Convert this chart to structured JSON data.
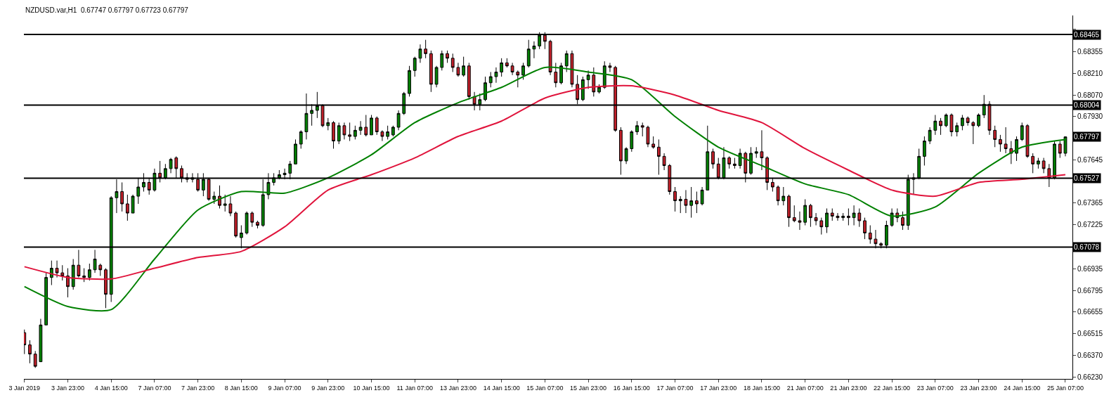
{
  "chart_data": {
    "type": "candlestick",
    "title": "NZDUSD.var,H1  0.67747 0.67797 0.67723 0.67797",
    "categories": [
      "3 Jan 2019",
      null,
      null,
      null,
      null,
      null,
      null,
      null,
      "3 Jan 23:00",
      null,
      null,
      null,
      null,
      null,
      null,
      null,
      "4 Jan 15:00",
      null,
      null,
      null,
      null,
      null,
      null,
      null,
      "7 Jan 07:00",
      null,
      null,
      null,
      null,
      null,
      null,
      null,
      "7 Jan 23:00",
      null,
      null,
      null,
      null,
      null,
      null,
      null,
      "8 Jan 15:00",
      null,
      null,
      null,
      null,
      null,
      null,
      null,
      "9 Jan 07:00",
      null,
      null,
      null,
      null,
      null,
      null,
      null,
      "9 Jan 23:00",
      null,
      null,
      null,
      null,
      null,
      null,
      null,
      "10 Jan 15:00",
      null,
      null,
      null,
      null,
      null,
      null,
      null,
      "11 Jan 07:00",
      null,
      null,
      null,
      null,
      null,
      null,
      null,
      "13 Jan 23:00",
      null,
      null,
      null,
      null,
      null,
      null,
      null,
      "14 Jan 15:00",
      null,
      null,
      null,
      null,
      null,
      null,
      null,
      "15 Jan 07:00",
      null,
      null,
      null,
      null,
      null,
      null,
      null,
      "15 Jan 23:00",
      null,
      null,
      null,
      null,
      null,
      null,
      null,
      "16 Jan 15:00",
      null,
      null,
      null,
      null,
      null,
      null,
      null,
      "17 Jan 07:00",
      null,
      null,
      null,
      null,
      null,
      null,
      null,
      "17 Jan 23:00",
      null,
      null,
      null,
      null,
      null,
      null,
      null,
      "18 Jan 15:00",
      null,
      null,
      null,
      null,
      null,
      null,
      null,
      "21 Jan 07:00",
      null,
      null,
      null,
      null,
      null,
      null,
      null,
      "21 Jan 23:00",
      null,
      null,
      null,
      null,
      null,
      null,
      null,
      "22 Jan 15:00",
      null,
      null,
      null,
      null,
      null,
      null,
      null,
      "23 Jan 07:00",
      null,
      null,
      null,
      null,
      null,
      null,
      null,
      "23 Jan 23:00",
      null,
      null,
      null,
      null,
      null,
      null,
      null,
      "24 Jan 15:00",
      null,
      null,
      null,
      null,
      null,
      null,
      null,
      "25 Jan 07:00"
    ],
    "ylim": [
      0.66218,
      0.68589
    ],
    "yticks": [
      {
        "value": 0.685,
        "label": null
      },
      0.68355,
      {
        "value": 0.6821,
        "label": "0.68210"
      },
      {
        "value": 0.6807,
        "label": "0.68070"
      },
      {
        "value": 0.6793,
        "label": "0.67930"
      },
      0.67645,
      {
        "value": 0.67505,
        "label": null
      },
      0.67365,
      0.67225,
      0.66935,
      0.66795,
      0.66655,
      0.66515,
      {
        "value": 0.6637,
        "label": "0.66370"
      },
      {
        "value": 0.6623,
        "label": "0.66230"
      }
    ],
    "ref_lines": [
      {
        "axis": "y",
        "value": 0.68465,
        "label": "0.68465",
        "color": "#000000"
      },
      {
        "axis": "y",
        "value": 0.68004,
        "label": "0.68004",
        "color": "#000000"
      },
      {
        "axis": "y",
        "value": 0.67527,
        "label": "0.67527",
        "color": "#000000"
      },
      {
        "axis": "y",
        "value": 0.67078,
        "label": "0.67078",
        "color": "#000000"
      }
    ],
    "annotations": [
      {
        "text": "0.67797",
        "y": 0.67797
      }
    ],
    "series": [
      {
        "type": "line",
        "color": "#008000",
        "x": [
          "3 Jan 2019",
          "3 Jan 23:00",
          "4 Jan 15:00",
          "7 Jan 07:00",
          "7 Jan 23:00",
          "8 Jan 15:00",
          "9 Jan 07:00",
          "9 Jan 23:00",
          "10 Jan 15:00",
          "11 Jan 07:00",
          "13 Jan 23:00",
          "14 Jan 15:00",
          "15 Jan 07:00",
          "15 Jan 23:00",
          "16 Jan 15:00",
          "17 Jan 07:00",
          "17 Jan 23:00",
          "18 Jan 15:00",
          "21 Jan 07:00",
          "21 Jan 23:00",
          "22 Jan 15:00",
          "23 Jan 07:00",
          "23 Jan 23:00",
          "24 Jan 15:00",
          "25 Jan 07:00"
        ],
        "values": [
          0.6682,
          0.6669,
          0.6667,
          0.67,
          0.6732,
          0.6744,
          0.6743,
          0.6753,
          0.6768,
          0.6789,
          0.6802,
          0.6812,
          0.6825,
          0.6822,
          0.6817,
          0.6793,
          0.6773,
          0.6761,
          0.6749,
          0.6742,
          0.6728,
          0.6734,
          0.6756,
          0.6773,
          0.6778
        ]
      },
      {
        "type": "line",
        "color": "#e0143c",
        "x": [
          "3 Jan 2019",
          "3 Jan 23:00",
          "4 Jan 15:00",
          "7 Jan 07:00",
          "7 Jan 23:00",
          "8 Jan 15:00",
          "9 Jan 07:00",
          "9 Jan 23:00",
          "10 Jan 15:00",
          "11 Jan 07:00",
          "13 Jan 23:00",
          "14 Jan 15:00",
          "15 Jan 07:00",
          "15 Jan 23:00",
          "16 Jan 15:00",
          "17 Jan 07:00",
          "17 Jan 23:00",
          "18 Jan 15:00",
          "21 Jan 07:00",
          "21 Jan 23:00",
          "22 Jan 15:00",
          "23 Jan 07:00",
          "23 Jan 23:00",
          "24 Jan 15:00",
          "25 Jan 07:00"
        ],
        "values": [
          0.6695,
          0.6688,
          0.6687,
          0.6694,
          0.6701,
          0.6705,
          0.6721,
          0.6745,
          0.6755,
          0.6766,
          0.678,
          0.679,
          0.6805,
          0.6812,
          0.6813,
          0.6807,
          0.6797,
          0.6789,
          0.6772,
          0.6758,
          0.6745,
          0.6741,
          0.675,
          0.6752,
          0.6755
        ]
      },
      {
        "ohlc": [
          [
            0.6652,
            0.6654,
            0.6638,
            0.6644
          ],
          [
            0.6644,
            0.6647,
            0.6632,
            0.6638
          ],
          [
            0.6638,
            0.664,
            0.6629,
            0.663
          ],
          [
            0.6633,
            0.6661,
            0.6633,
            0.6657
          ],
          [
            0.6657,
            0.6691,
            0.6657,
            0.6688
          ],
          [
            0.6688,
            0.6699,
            0.6683,
            0.6694
          ],
          [
            0.6694,
            0.6699,
            0.6688,
            0.6691
          ],
          [
            0.6691,
            0.6696,
            0.6686,
            0.6689
          ],
          [
            0.6689,
            0.6694,
            0.6675,
            0.6682
          ],
          [
            0.6682,
            0.67,
            0.668,
            0.6696
          ],
          [
            0.6696,
            0.6706,
            0.6688,
            0.6689
          ],
          [
            0.6689,
            0.6694,
            0.6685,
            0.6688
          ],
          [
            0.6688,
            0.6697,
            0.6686,
            0.6693
          ],
          [
            0.6693,
            0.6706,
            0.6691,
            0.67
          ],
          [
            0.6696,
            0.6697,
            0.6689,
            0.6693
          ],
          [
            0.6693,
            0.6694,
            0.6668,
            0.6677
          ],
          [
            0.6677,
            0.6741,
            0.6672,
            0.674
          ],
          [
            0.674,
            0.6752,
            0.673,
            0.6744
          ],
          [
            0.6744,
            0.675,
            0.6731,
            0.6736
          ],
          [
            0.6736,
            0.6742,
            0.6725,
            0.673
          ],
          [
            0.673,
            0.6742,
            0.673,
            0.6741
          ],
          [
            0.6741,
            0.6753,
            0.6736,
            0.6747
          ],
          [
            0.6747,
            0.6756,
            0.6744,
            0.675
          ],
          [
            0.675,
            0.6753,
            0.6742,
            0.6745
          ],
          [
            0.6745,
            0.6759,
            0.6744,
            0.6756
          ],
          [
            0.6756,
            0.6764,
            0.675,
            0.6753
          ],
          [
            0.6753,
            0.6762,
            0.6752,
            0.6759
          ],
          [
            0.6759,
            0.6766,
            0.6756,
            0.6765
          ],
          [
            0.6766,
            0.6767,
            0.6753,
            0.6759
          ],
          [
            0.6759,
            0.6761,
            0.675,
            0.6753
          ],
          [
            0.6753,
            0.6756,
            0.675,
            0.6752
          ],
          [
            0.6752,
            0.6756,
            0.675,
            0.6753
          ],
          [
            0.6752,
            0.6756,
            0.6744,
            0.6745
          ],
          [
            0.6745,
            0.6756,
            0.6741,
            0.6752
          ],
          [
            0.6752,
            0.6753,
            0.6738,
            0.6739
          ],
          [
            0.6739,
            0.6744,
            0.6736,
            0.6741
          ],
          [
            0.6741,
            0.6748,
            0.6733,
            0.6735
          ],
          [
            0.6735,
            0.6742,
            0.6731,
            0.6736
          ],
          [
            0.6736,
            0.6741,
            0.6728,
            0.673
          ],
          [
            0.673,
            0.6731,
            0.6714,
            0.6715
          ],
          [
            0.6714,
            0.6722,
            0.6707,
            0.6717
          ],
          [
            0.6717,
            0.6731,
            0.6716,
            0.673
          ],
          [
            0.673,
            0.6731,
            0.6721,
            0.6724
          ],
          [
            0.6724,
            0.6725,
            0.672,
            0.6722
          ],
          [
            0.6722,
            0.6752,
            0.6721,
            0.6742
          ],
          [
            0.6742,
            0.6756,
            0.6739,
            0.675
          ],
          [
            0.675,
            0.6756,
            0.6748,
            0.6753
          ],
          [
            0.6753,
            0.6758,
            0.6752,
            0.6755
          ],
          [
            0.6755,
            0.6759,
            0.6752,
            0.6756
          ],
          [
            0.6756,
            0.6764,
            0.6752,
            0.6762
          ],
          [
            0.6762,
            0.6778,
            0.6762,
            0.6775
          ],
          [
            0.6775,
            0.6784,
            0.6772,
            0.6783
          ],
          [
            0.6783,
            0.6808,
            0.6778,
            0.6795
          ],
          [
            0.6795,
            0.6801,
            0.6787,
            0.6797
          ],
          [
            0.6797,
            0.6809,
            0.6792,
            0.68
          ],
          [
            0.68,
            0.6801,
            0.6786,
            0.6787
          ],
          [
            0.6787,
            0.6792,
            0.6784,
            0.6789
          ],
          [
            0.6789,
            0.679,
            0.6772,
            0.6777
          ],
          [
            0.6777,
            0.6789,
            0.6775,
            0.6787
          ],
          [
            0.6787,
            0.6789,
            0.6778,
            0.6781
          ],
          [
            0.6781,
            0.6789,
            0.6777,
            0.678
          ],
          [
            0.678,
            0.6787,
            0.6778,
            0.6784
          ],
          [
            0.6784,
            0.679,
            0.6781,
            0.6786
          ],
          [
            0.6786,
            0.6794,
            0.678,
            0.6781
          ],
          [
            0.6781,
            0.6794,
            0.6781,
            0.6792
          ],
          [
            0.6792,
            0.6793,
            0.6781,
            0.6783
          ],
          [
            0.6783,
            0.6784,
            0.6777,
            0.678
          ],
          [
            0.678,
            0.6787,
            0.6778,
            0.6783
          ],
          [
            0.6781,
            0.6787,
            0.678,
            0.6786
          ],
          [
            0.6786,
            0.6797,
            0.6784,
            0.6795
          ],
          [
            0.6795,
            0.6809,
            0.6794,
            0.6808
          ],
          [
            0.6808,
            0.6826,
            0.6806,
            0.6823
          ],
          [
            0.6823,
            0.6832,
            0.6819,
            0.6831
          ],
          [
            0.6831,
            0.684,
            0.6828,
            0.6837
          ],
          [
            0.6837,
            0.6843,
            0.6831,
            0.6834
          ],
          [
            0.6834,
            0.6836,
            0.6809,
            0.6814
          ],
          [
            0.6814,
            0.6826,
            0.6812,
            0.6825
          ],
          [
            0.6825,
            0.6836,
            0.6823,
            0.6834
          ],
          [
            0.6834,
            0.6836,
            0.6828,
            0.6831
          ],
          [
            0.6831,
            0.6834,
            0.6822,
            0.6825
          ],
          [
            0.6825,
            0.6828,
            0.6819,
            0.682
          ],
          [
            0.682,
            0.6832,
            0.6819,
            0.6826
          ],
          [
            0.6826,
            0.6828,
            0.6804,
            0.6806
          ],
          [
            0.6806,
            0.6809,
            0.6797,
            0.6801
          ],
          [
            0.6801,
            0.6808,
            0.6797,
            0.6804
          ],
          [
            0.6804,
            0.6819,
            0.6803,
            0.6815
          ],
          [
            0.6815,
            0.6822,
            0.6812,
            0.6819
          ],
          [
            0.6819,
            0.6825,
            0.6815,
            0.6822
          ],
          [
            0.6822,
            0.6831,
            0.6819,
            0.6828
          ],
          [
            0.6828,
            0.6831,
            0.6825,
            0.6826
          ],
          [
            0.6826,
            0.6828,
            0.682,
            0.6822
          ],
          [
            0.6822,
            0.6823,
            0.6812,
            0.682
          ],
          [
            0.682,
            0.6828,
            0.6817,
            0.6826
          ],
          [
            0.6826,
            0.6843,
            0.6825,
            0.6837
          ],
          [
            0.6837,
            0.6842,
            0.6831,
            0.6839
          ],
          [
            0.6839,
            0.6848,
            0.6837,
            0.6846
          ],
          [
            0.6846,
            0.6848,
            0.6837,
            0.6842
          ],
          [
            0.6842,
            0.6843,
            0.682,
            0.6822
          ],
          [
            0.6822,
            0.6828,
            0.6812,
            0.6815
          ],
          [
            0.6815,
            0.6828,
            0.6814,
            0.6826
          ],
          [
            0.6826,
            0.6836,
            0.6822,
            0.6834
          ],
          [
            0.6834,
            0.6836,
            0.6812,
            0.6814
          ],
          [
            0.6814,
            0.682,
            0.6801,
            0.6804
          ],
          [
            0.6804,
            0.6819,
            0.6803,
            0.6817
          ],
          [
            0.6817,
            0.6823,
            0.6811,
            0.682
          ],
          [
            0.682,
            0.6825,
            0.6806,
            0.6809
          ],
          [
            0.6809,
            0.6814,
            0.6808,
            0.6812
          ],
          [
            0.6812,
            0.6829,
            0.6811,
            0.6826
          ],
          [
            0.6826,
            0.6828,
            0.6822,
            0.6825
          ],
          [
            0.6825,
            0.6826,
            0.6783,
            0.6784
          ],
          [
            0.6784,
            0.6786,
            0.6755,
            0.6764
          ],
          [
            0.6764,
            0.6773,
            0.6762,
            0.6772
          ],
          [
            0.6772,
            0.6784,
            0.677,
            0.6783
          ],
          [
            0.6783,
            0.679,
            0.6781,
            0.6787
          ],
          [
            0.6787,
            0.6789,
            0.678,
            0.6786
          ],
          [
            0.6786,
            0.6787,
            0.6773,
            0.6775
          ],
          [
            0.6775,
            0.678,
            0.6772,
            0.6773
          ],
          [
            0.6773,
            0.6778,
            0.6755,
            0.6767
          ],
          [
            0.6767,
            0.6769,
            0.6758,
            0.6761
          ],
          [
            0.6761,
            0.6762,
            0.6742,
            0.6744
          ],
          [
            0.6744,
            0.6747,
            0.6731,
            0.6738
          ],
          [
            0.6738,
            0.6741,
            0.673,
            0.6739
          ],
          [
            0.6739,
            0.6745,
            0.673,
            0.6735
          ],
          [
            0.6735,
            0.6747,
            0.6727,
            0.6738
          ],
          [
            0.6738,
            0.6744,
            0.673,
            0.6736
          ],
          [
            0.6736,
            0.6747,
            0.6735,
            0.6745
          ],
          [
            0.6745,
            0.6787,
            0.6745,
            0.677
          ],
          [
            0.677,
            0.6772,
            0.6759,
            0.6762
          ],
          [
            0.6762,
            0.6766,
            0.6752,
            0.6753
          ],
          [
            0.6753,
            0.6773,
            0.6752,
            0.6766
          ],
          [
            0.6766,
            0.6767,
            0.6759,
            0.6762
          ],
          [
            0.6762,
            0.6766,
            0.6759,
            0.6761
          ],
          [
            0.6761,
            0.6772,
            0.6759,
            0.6769
          ],
          [
            0.6769,
            0.677,
            0.675,
            0.6756
          ],
          [
            0.6756,
            0.6773,
            0.6755,
            0.6769
          ],
          [
            0.6769,
            0.6773,
            0.6766,
            0.677
          ],
          [
            0.677,
            0.6784,
            0.6758,
            0.6766
          ],
          [
            0.6766,
            0.6767,
            0.6745,
            0.675
          ],
          [
            0.675,
            0.6753,
            0.6744,
            0.6747
          ],
          [
            0.6747,
            0.6748,
            0.6735,
            0.6738
          ],
          [
            0.6738,
            0.6747,
            0.6735,
            0.6741
          ],
          [
            0.6741,
            0.6742,
            0.6721,
            0.6727
          ],
          [
            0.6727,
            0.6735,
            0.6724,
            0.6725
          ],
          [
            0.6725,
            0.6731,
            0.6719,
            0.6724
          ],
          [
            0.6724,
            0.6739,
            0.6722,
            0.6735
          ],
          [
            0.6735,
            0.6736,
            0.6721,
            0.6727
          ],
          [
            0.6727,
            0.673,
            0.6722,
            0.6725
          ],
          [
            0.6725,
            0.6727,
            0.6716,
            0.6721
          ],
          [
            0.6721,
            0.6733,
            0.6717,
            0.673
          ],
          [
            0.673,
            0.6733,
            0.6725,
            0.6728
          ],
          [
            0.6728,
            0.673,
            0.6725,
            0.6727
          ],
          [
            0.6727,
            0.673,
            0.6725,
            0.6728
          ],
          [
            0.6728,
            0.6733,
            0.6722,
            0.6727
          ],
          [
            0.6727,
            0.6735,
            0.6722,
            0.673
          ],
          [
            0.673,
            0.6733,
            0.6721,
            0.6725
          ],
          [
            0.6725,
            0.6727,
            0.6713,
            0.6717
          ],
          [
            0.6717,
            0.6722,
            0.671,
            0.6713
          ],
          [
            0.6713,
            0.6719,
            0.6707,
            0.671
          ],
          [
            0.671,
            0.6711,
            0.6707,
            0.6709
          ],
          [
            0.6709,
            0.6725,
            0.6707,
            0.6722
          ],
          [
            0.6722,
            0.6733,
            0.6721,
            0.673
          ],
          [
            0.673,
            0.6733,
            0.6724,
            0.6727
          ],
          [
            0.6727,
            0.6731,
            0.6719,
            0.6722
          ],
          [
            0.6722,
            0.6755,
            0.6719,
            0.6752
          ],
          [
            0.6752,
            0.6756,
            0.6742,
            0.6753
          ],
          [
            0.6753,
            0.6772,
            0.6752,
            0.6767
          ],
          [
            0.6767,
            0.678,
            0.6761,
            0.6777
          ],
          [
            0.6777,
            0.6786,
            0.6775,
            0.6784
          ],
          [
            0.6784,
            0.6794,
            0.6781,
            0.679
          ],
          [
            0.679,
            0.6792,
            0.6781,
            0.6787
          ],
          [
            0.6787,
            0.6795,
            0.6786,
            0.6794
          ],
          [
            0.6794,
            0.6795,
            0.678,
            0.6783
          ],
          [
            0.6783,
            0.6789,
            0.678,
            0.6787
          ],
          [
            0.6787,
            0.6794,
            0.6784,
            0.6792
          ],
          [
            0.6792,
            0.6793,
            0.6787,
            0.6789
          ],
          [
            0.6789,
            0.679,
            0.6775,
            0.6787
          ],
          [
            0.6787,
            0.6795,
            0.6786,
            0.6794
          ],
          [
            0.6794,
            0.6807,
            0.6792,
            0.6801
          ],
          [
            0.6801,
            0.6803,
            0.6781,
            0.6784
          ],
          [
            0.6784,
            0.6787,
            0.6773,
            0.6778
          ],
          [
            0.6778,
            0.6781,
            0.677,
            0.6775
          ],
          [
            0.6775,
            0.6786,
            0.6769,
            0.6772
          ],
          [
            0.6772,
            0.6777,
            0.6762,
            0.6769
          ],
          [
            0.6769,
            0.678,
            0.6764,
            0.6778
          ],
          [
            0.6778,
            0.6789,
            0.6777,
            0.6787
          ],
          [
            0.6787,
            0.6788,
            0.6766,
            0.6767
          ],
          [
            0.6767,
            0.6769,
            0.6756,
            0.6762
          ],
          [
            0.6762,
            0.6766,
            0.6759,
            0.6764
          ],
          [
            0.6764,
            0.6766,
            0.6756,
            0.6759
          ],
          [
            0.6759,
            0.6762,
            0.6747,
            0.6753
          ],
          [
            0.6753,
            0.6777,
            0.6752,
            0.6775
          ],
          [
            0.6775,
            0.6777,
            0.6766,
            0.6769
          ],
          [
            0.6769,
            0.678,
            0.6767,
            0.67797
          ]
        ]
      }
    ]
  }
}
